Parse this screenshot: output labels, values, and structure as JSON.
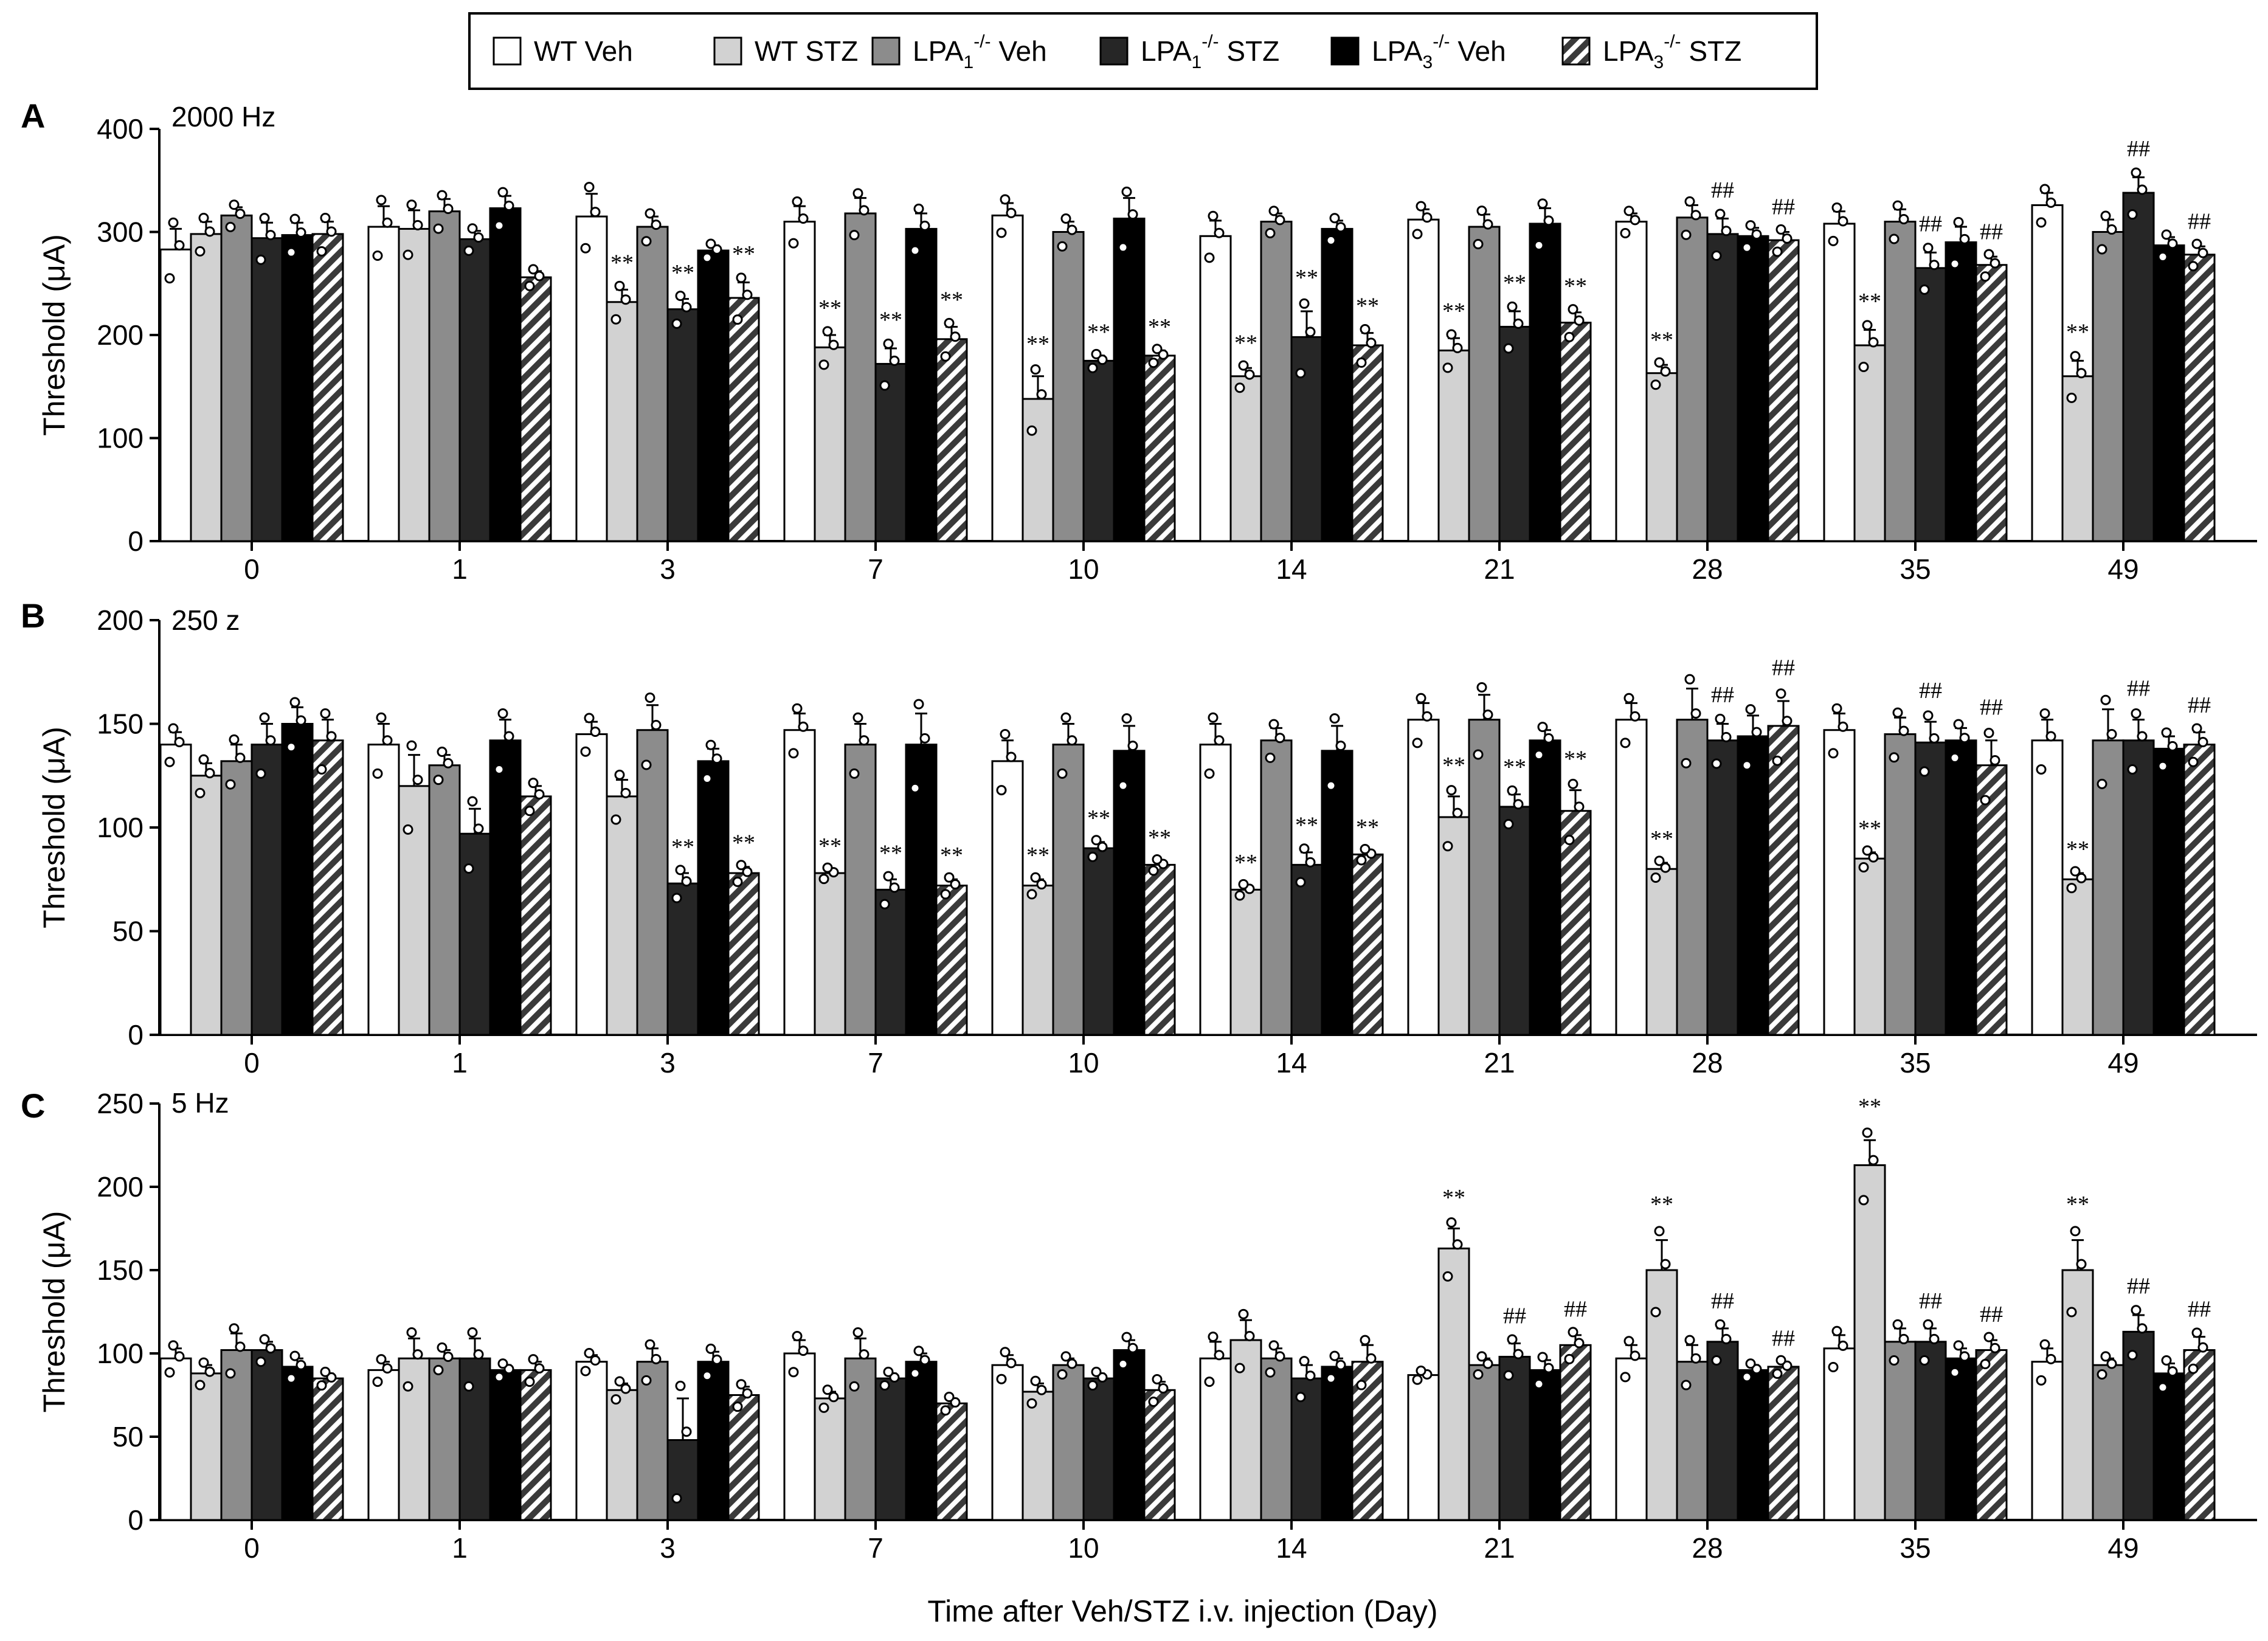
{
  "chart_data": {
    "type": "bar",
    "xlabel": "Time after Veh/STZ i.v. injection (Day)",
    "categories": [
      "0",
      "1",
      "3",
      "7",
      "10",
      "14",
      "21",
      "28",
      "35",
      "49"
    ],
    "legend": {
      "placement": "top-center",
      "entries": [
        {
          "key": "wt_veh",
          "base": "WT Veh",
          "sub": "",
          "sup": "",
          "tail": "",
          "fill": "#ffffff",
          "pattern": "none"
        },
        {
          "key": "wt_stz",
          "base": "WT STZ",
          "sub": "",
          "sup": "",
          "tail": "",
          "fill": "#d2d2d2",
          "pattern": "none"
        },
        {
          "key": "lpa1_veh",
          "base": "LPA",
          "sub": "1",
          "sup": "-/-",
          "tail": " Veh",
          "fill": "#8c8c8c",
          "pattern": "none"
        },
        {
          "key": "lpa1_stz",
          "base": "LPA",
          "sub": "1",
          "sup": "-/-",
          "tail": " STZ",
          "fill": "#262626",
          "pattern": "none"
        },
        {
          "key": "lpa3_veh",
          "base": "LPA",
          "sub": "3",
          "sup": "-/-",
          "tail": " Veh",
          "fill": "#000000",
          "pattern": "none"
        },
        {
          "key": "lpa3_stz",
          "base": "LPA",
          "sub": "3",
          "sup": "-/-",
          "tail": " STZ",
          "fill": "#3a3a3a",
          "pattern": "hatch"
        }
      ]
    },
    "panels": [
      {
        "letter": "A",
        "title": "2000 Hz",
        "ylabel": "Threshold (μA)",
        "ylim": [
          0,
          400
        ],
        "yticks": [
          0,
          100,
          200,
          300,
          400
        ],
        "series": [
          {
            "name": "WT Veh",
            "values": [
              283,
              305,
              315,
              310,
              316,
              296,
              312,
              310,
              308,
              326
            ],
            "err": [
              20,
              20,
              22,
              15,
              12,
              15,
              10,
              8,
              12,
              12
            ]
          },
          {
            "name": "WT STZ",
            "values": [
              298,
              303,
              232,
              188,
              138,
              160,
              185,
              163,
              190,
              160
            ],
            "err": [
              12,
              18,
              12,
              12,
              22,
              8,
              12,
              8,
              15,
              15
            ]
          },
          {
            "name": "LPA1-/- Veh",
            "values": [
              316,
              320,
              305,
              318,
              300,
              310,
              305,
              314,
              310,
              300
            ],
            "err": [
              8,
              12,
              10,
              15,
              10,
              8,
              12,
              12,
              12,
              12
            ]
          },
          {
            "name": "LPA1-/- STZ",
            "values": [
              294,
              293,
              225,
              172,
              175,
              198,
              208,
              298,
              265,
              338
            ],
            "err": [
              15,
              8,
              10,
              15,
              5,
              25,
              15,
              15,
              15,
              15
            ]
          },
          {
            "name": "LPA3-/- Veh",
            "values": [
              297,
              323,
              282,
              303,
              313,
              303,
              308,
              296,
              290,
              287
            ],
            "err": [
              12,
              12,
              5,
              15,
              20,
              8,
              15,
              8,
              15,
              8
            ]
          },
          {
            "name": "LPA3-/- STZ",
            "values": [
              298,
              256,
              236,
              196,
              180,
              190,
              212,
              292,
              268,
              278
            ],
            "err": [
              12,
              6,
              15,
              12,
              5,
              12,
              10,
              8,
              8,
              8
            ]
          }
        ],
        "annotations": [
          {
            "day": "3",
            "series": 1,
            "text": "**"
          },
          {
            "day": "3",
            "series": 3,
            "text": "**"
          },
          {
            "day": "3",
            "series": 5,
            "text": "**"
          },
          {
            "day": "7",
            "series": 1,
            "text": "**"
          },
          {
            "day": "7",
            "series": 3,
            "text": "**"
          },
          {
            "day": "7",
            "series": 5,
            "text": "**"
          },
          {
            "day": "10",
            "series": 1,
            "text": "**"
          },
          {
            "day": "10",
            "series": 3,
            "text": "**"
          },
          {
            "day": "10",
            "series": 5,
            "text": "**"
          },
          {
            "day": "14",
            "series": 1,
            "text": "**"
          },
          {
            "day": "14",
            "series": 3,
            "text": "**"
          },
          {
            "day": "14",
            "series": 5,
            "text": "**"
          },
          {
            "day": "21",
            "series": 1,
            "text": "**"
          },
          {
            "day": "21",
            "series": 3,
            "text": "**"
          },
          {
            "day": "21",
            "series": 5,
            "text": "**"
          },
          {
            "day": "28",
            "series": 1,
            "text": "**"
          },
          {
            "day": "28",
            "series": 3,
            "text": "##"
          },
          {
            "day": "28",
            "series": 5,
            "text": "##"
          },
          {
            "day": "35",
            "series": 1,
            "text": "**"
          },
          {
            "day": "35",
            "series": 3,
            "text": "##"
          },
          {
            "day": "35",
            "series": 5,
            "text": "##"
          },
          {
            "day": "49",
            "series": 1,
            "text": "**"
          },
          {
            "day": "49",
            "series": 3,
            "text": "##"
          },
          {
            "day": "49",
            "series": 5,
            "text": "##"
          }
        ]
      },
      {
        "letter": "B",
        "title": "250 z",
        "ylabel": "Threshold (μA)",
        "ylim": [
          0,
          200
        ],
        "yticks": [
          0,
          50,
          100,
          150,
          200
        ],
        "series": [
          {
            "name": "WT Veh",
            "values": [
              140,
              140,
              145,
              147,
              132,
              140,
              152,
              152,
              147,
              142
            ],
            "err": [
              6,
              10,
              6,
              8,
              10,
              10,
              8,
              8,
              8,
              10
            ]
          },
          {
            "name": "WT STZ",
            "values": [
              125,
              120,
              115,
              78,
              72,
              70,
              105,
              80,
              85,
              75
            ],
            "err": [
              6,
              15,
              8,
              2,
              3,
              2,
              10,
              3,
              3,
              3
            ]
          },
          {
            "name": "LPA1-/- Veh",
            "values": [
              132,
              130,
              147,
              140,
              140,
              142,
              152,
              152,
              145,
              142
            ],
            "err": [
              8,
              5,
              12,
              10,
              10,
              6,
              12,
              15,
              8,
              15
            ]
          },
          {
            "name": "LPA1-/- STZ",
            "values": [
              140,
              97,
              73,
              70,
              90,
              82,
              110,
              142,
              141,
              142
            ],
            "err": [
              10,
              12,
              5,
              5,
              3,
              6,
              6,
              8,
              10,
              10
            ]
          },
          {
            "name": "LPA3-/- Veh",
            "values": [
              150,
              142,
              132,
              140,
              137,
              137,
              142,
              144,
              142,
              138
            ],
            "err": [
              8,
              10,
              6,
              15,
              12,
              12,
              5,
              10,
              6,
              6
            ]
          },
          {
            "name": "LPA3-/- STZ",
            "values": [
              142,
              115,
              78,
              72,
              82,
              87,
              108,
              149,
              130,
              140
            ],
            "err": [
              10,
              5,
              3,
              3,
              2,
              2,
              10,
              12,
              12,
              6
            ]
          }
        ],
        "annotations": [
          {
            "day": "3",
            "series": 3,
            "text": "**"
          },
          {
            "day": "3",
            "series": 5,
            "text": "**"
          },
          {
            "day": "7",
            "series": 1,
            "text": "**"
          },
          {
            "day": "7",
            "series": 3,
            "text": "**"
          },
          {
            "day": "7",
            "series": 5,
            "text": "**"
          },
          {
            "day": "10",
            "series": 1,
            "text": "**"
          },
          {
            "day": "10",
            "series": 3,
            "text": "**"
          },
          {
            "day": "10",
            "series": 5,
            "text": "**"
          },
          {
            "day": "14",
            "series": 1,
            "text": "**"
          },
          {
            "day": "14",
            "series": 3,
            "text": "**"
          },
          {
            "day": "14",
            "series": 5,
            "text": "**"
          },
          {
            "day": "21",
            "series": 1,
            "text": "**"
          },
          {
            "day": "21",
            "series": 3,
            "text": "**"
          },
          {
            "day": "21",
            "series": 5,
            "text": "**"
          },
          {
            "day": "28",
            "series": 1,
            "text": "**"
          },
          {
            "day": "28",
            "series": 3,
            "text": "##"
          },
          {
            "day": "28",
            "series": 5,
            "text": "##"
          },
          {
            "day": "35",
            "series": 1,
            "text": "**"
          },
          {
            "day": "35",
            "series": 3,
            "text": "##"
          },
          {
            "day": "35",
            "series": 5,
            "text": "##"
          },
          {
            "day": "49",
            "series": 1,
            "text": "**"
          },
          {
            "day": "49",
            "series": 3,
            "text": "##"
          },
          {
            "day": "49",
            "series": 5,
            "text": "##"
          }
        ]
      },
      {
        "letter": "C",
        "title": "5 Hz",
        "ylabel": "Threshold (μA)",
        "ylim": [
          0,
          250
        ],
        "yticks": [
          0,
          50,
          100,
          150,
          200,
          250
        ],
        "series": [
          {
            "name": "WT Veh",
            "values": [
              97,
              90,
              95,
              100,
              93,
              97,
              87,
              97,
              103,
              95
            ],
            "err": [
              6,
              5,
              4,
              8,
              6,
              10,
              2,
              8,
              8,
              8
            ]
          },
          {
            "name": "WT STZ",
            "values": [
              88,
              97,
              78,
              73,
              77,
              108,
              163,
              150,
              213,
              150
            ],
            "err": [
              5,
              12,
              4,
              4,
              5,
              12,
              12,
              18,
              15,
              18
            ]
          },
          {
            "name": "LPA1-/- Veh",
            "values": [
              102,
              97,
              95,
              97,
              93,
              97,
              93,
              95,
              107,
              93
            ],
            "err": [
              10,
              5,
              8,
              12,
              4,
              6,
              4,
              10,
              8,
              4
            ]
          },
          {
            "name": "LPA1-/- STZ",
            "values": [
              102,
              97,
              48,
              85,
              85,
              85,
              98,
              107,
              107,
              113
            ],
            "err": [
              5,
              12,
              25,
              3,
              3,
              8,
              8,
              8,
              8,
              10
            ]
          },
          {
            "name": "LPA3-/- Veh",
            "values": [
              92,
              90,
              95,
              95,
              102,
              92,
              90,
              90,
              97,
              88
            ],
            "err": [
              5,
              3,
              6,
              5,
              6,
              5,
              6,
              3,
              6,
              6
            ]
          },
          {
            "name": "LPA3-/- STZ",
            "values": [
              85,
              90,
              75,
              70,
              78,
              95,
              105,
              92,
              102,
              102
            ],
            "err": [
              3,
              5,
              5,
              3,
              5,
              10,
              6,
              3,
              6,
              8
            ]
          }
        ],
        "annotations": [
          {
            "day": "21",
            "series": 1,
            "text": "**"
          },
          {
            "day": "21",
            "series": 3,
            "text": "##"
          },
          {
            "day": "21",
            "series": 5,
            "text": "##"
          },
          {
            "day": "28",
            "series": 1,
            "text": "**"
          },
          {
            "day": "28",
            "series": 3,
            "text": "##"
          },
          {
            "day": "28",
            "series": 5,
            "text": "##"
          },
          {
            "day": "35",
            "series": 1,
            "text": "**"
          },
          {
            "day": "35",
            "series": 3,
            "text": "##"
          },
          {
            "day": "35",
            "series": 5,
            "text": "##"
          },
          {
            "day": "49",
            "series": 1,
            "text": "**"
          },
          {
            "day": "49",
            "series": 3,
            "text": "##"
          },
          {
            "day": "49",
            "series": 5,
            "text": "##"
          }
        ]
      }
    ]
  }
}
